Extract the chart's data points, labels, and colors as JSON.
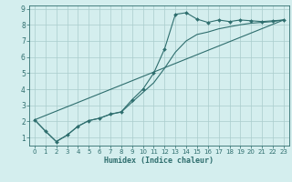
{
  "xlabel": "Humidex (Indice chaleur)",
  "xlim": [
    -0.5,
    23.5
  ],
  "ylim": [
    0.5,
    9.2
  ],
  "xticks": [
    0,
    1,
    2,
    3,
    4,
    5,
    6,
    7,
    8,
    9,
    10,
    11,
    12,
    13,
    14,
    15,
    16,
    17,
    18,
    19,
    20,
    21,
    22,
    23
  ],
  "yticks": [
    1,
    2,
    3,
    4,
    5,
    6,
    7,
    8,
    9
  ],
  "bg_color": "#d4eeee",
  "grid_color": "#aacccc",
  "line_color": "#2e6e6e",
  "line1_x": [
    0,
    1,
    2,
    3,
    4,
    5,
    6,
    7,
    8,
    9,
    10,
    11,
    12,
    13,
    14,
    15,
    16,
    17,
    18,
    19,
    20,
    21,
    22,
    23
  ],
  "line1_y": [
    2.1,
    1.4,
    0.75,
    1.15,
    1.7,
    2.05,
    2.2,
    2.45,
    2.6,
    3.35,
    4.0,
    5.0,
    6.5,
    8.65,
    8.75,
    8.35,
    8.15,
    8.3,
    8.2,
    8.3,
    8.25,
    8.2,
    8.25,
    8.3
  ],
  "line2_x": [
    0,
    23
  ],
  "line2_y": [
    2.1,
    8.3
  ],
  "line3_x": [
    0,
    1,
    2,
    3,
    4,
    5,
    6,
    7,
    8,
    9,
    10,
    11,
    12,
    13,
    14,
    15,
    16,
    17,
    18,
    19,
    20,
    21,
    22,
    23
  ],
  "line3_y": [
    2.1,
    1.4,
    0.75,
    1.15,
    1.7,
    2.05,
    2.2,
    2.45,
    2.58,
    3.2,
    3.8,
    4.4,
    5.3,
    6.3,
    7.0,
    7.4,
    7.55,
    7.75,
    7.88,
    8.0,
    8.1,
    8.15,
    8.2,
    8.3
  ],
  "marker": "D",
  "markersize": 2.0,
  "linewidth": 0.8,
  "tick_fontsize": 5.0,
  "xlabel_fontsize": 6.0
}
